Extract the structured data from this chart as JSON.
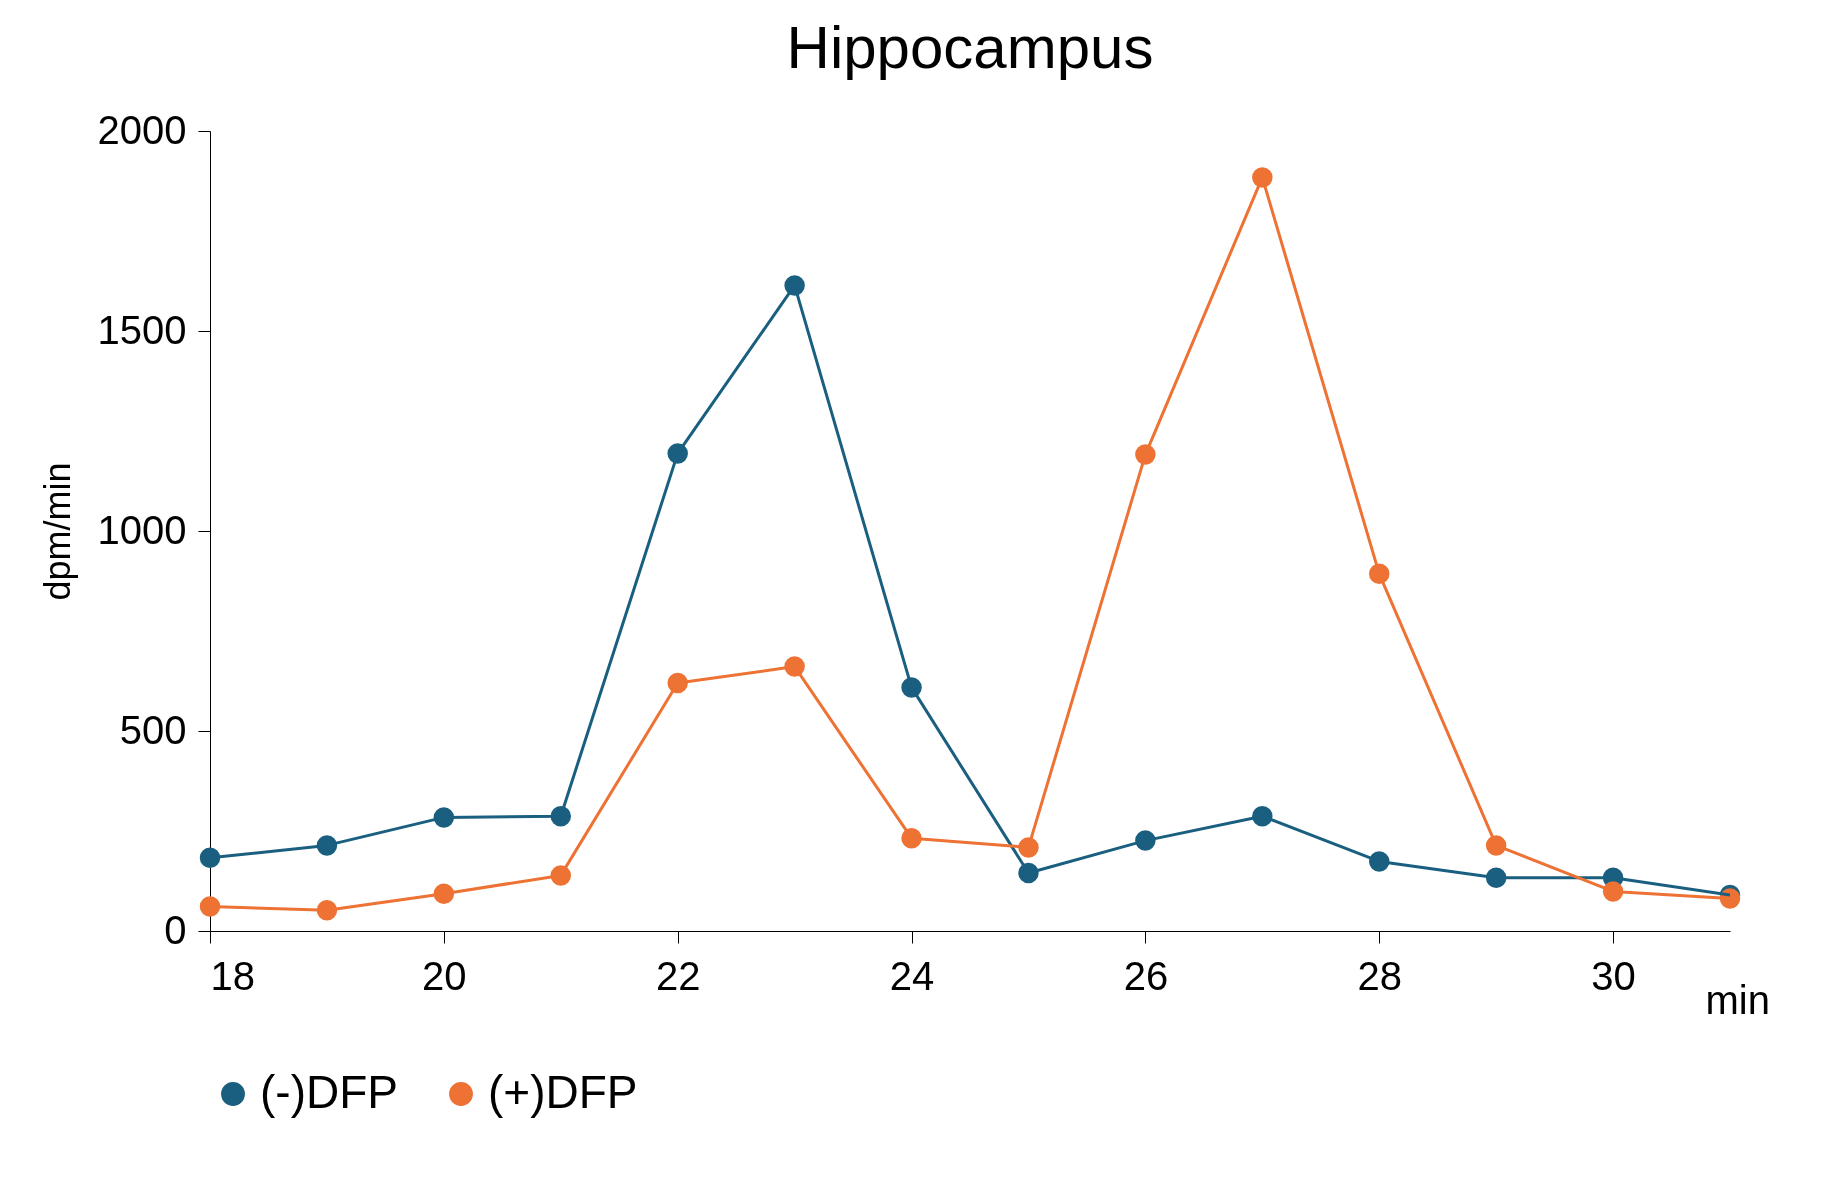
{
  "chart_data": {
    "type": "line",
    "title": "Hippocampus",
    "xlabel": "min",
    "ylabel": "dpm/min",
    "x": [
      18,
      19,
      20,
      21,
      22,
      23,
      24,
      25,
      26,
      27,
      28,
      29,
      30,
      31
    ],
    "series": [
      {
        "name": "(-)DFP",
        "color": "#1a5f80",
        "values": [
          183,
          214,
          284,
          287,
          1194,
          1614,
          609,
          145,
          226,
          287,
          174,
          133,
          133,
          90
        ]
      },
      {
        "name": "(+)DFP",
        "color": "#ed7234",
        "values": [
          61,
          52,
          93,
          139,
          620,
          661,
          232,
          209,
          1191,
          1884,
          893,
          214,
          99,
          81
        ]
      }
    ],
    "xlim": [
      18,
      31
    ],
    "xticks": [
      18,
      20,
      22,
      24,
      26,
      28,
      30
    ],
    "ylim": [
      0,
      2000
    ],
    "yticks": [
      0,
      500,
      1000,
      1500,
      2000
    ],
    "grid": false,
    "legend": "bottom",
    "marker": "circle",
    "line_style": "solid"
  }
}
